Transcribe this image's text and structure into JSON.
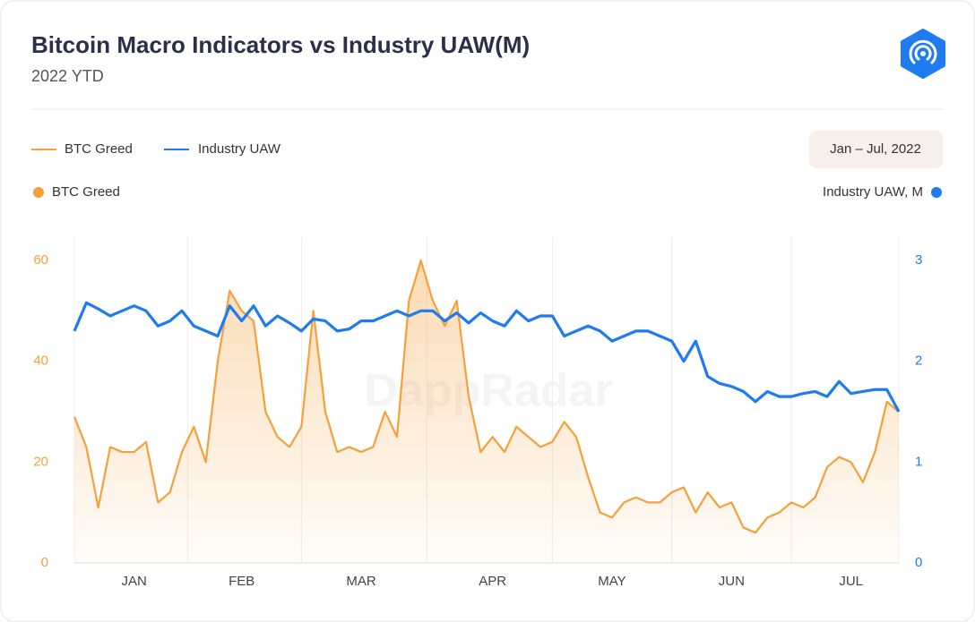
{
  "date_range": "Jan – Jul, 2022",
  "chart_data": {
    "type": "line",
    "title": "Bitcoin Macro Indicators vs Industry UAW(M)",
    "subtitle": "2022 YTD",
    "watermark": "DappRadar",
    "y_label": "BTC Greed",
    "y2_label": "Industry UAW, M",
    "categories": [
      null,
      null,
      null,
      null,
      null,
      "JAN",
      null,
      null,
      null,
      null,
      null,
      null,
      null,
      null,
      "FEB",
      null,
      null,
      null,
      null,
      null,
      null,
      null,
      null,
      null,
      "MAR",
      null,
      null,
      null,
      null,
      null,
      null,
      null,
      null,
      null,
      null,
      "APR",
      null,
      null,
      null,
      null,
      null,
      null,
      null,
      null,
      null,
      "MAY",
      null,
      null,
      null,
      null,
      null,
      null,
      null,
      null,
      null,
      "JUN",
      null,
      null,
      null,
      null,
      null,
      null,
      null,
      null,
      null,
      "JUL",
      null,
      null,
      null,
      null
    ],
    "series": [
      {
        "name": "BTC Greed",
        "color": "#f5a03b",
        "axis": "y",
        "values": [
          29,
          23,
          11,
          23,
          22,
          22,
          24,
          12,
          14,
          22,
          27,
          20,
          40,
          54,
          50,
          48,
          30,
          25,
          23,
          27,
          50,
          30,
          22,
          23,
          22,
          23,
          30,
          25,
          52,
          60,
          52,
          47,
          52,
          33,
          22,
          25,
          22,
          27,
          25,
          23,
          24,
          28,
          25,
          17,
          10,
          9,
          12,
          13,
          12,
          12,
          14,
          15,
          10,
          14,
          11,
          12,
          7,
          6,
          9,
          10,
          12,
          11,
          13,
          19,
          21,
          20,
          16,
          22,
          32,
          30
        ]
      },
      {
        "name": "Industry UAW",
        "color": "#1e7bf0",
        "axis": "y2",
        "values": [
          2.3,
          2.58,
          2.52,
          2.45,
          2.5,
          2.55,
          2.5,
          2.35,
          2.4,
          2.5,
          2.35,
          2.3,
          2.25,
          2.55,
          2.4,
          2.55,
          2.35,
          2.45,
          2.38,
          2.3,
          2.42,
          2.4,
          2.3,
          2.32,
          2.4,
          2.4,
          2.45,
          2.5,
          2.45,
          2.5,
          2.5,
          2.4,
          2.48,
          2.38,
          2.48,
          2.4,
          2.35,
          2.5,
          2.4,
          2.45,
          2.45,
          2.25,
          2.3,
          2.35,
          2.3,
          2.2,
          2.25,
          2.3,
          2.3,
          2.25,
          2.2,
          2.0,
          2.2,
          1.85,
          1.78,
          1.75,
          1.7,
          1.6,
          1.7,
          1.65,
          1.65,
          1.68,
          1.7,
          1.65,
          1.8,
          1.68,
          1.7,
          1.72,
          1.72,
          1.5
        ]
      }
    ],
    "ylim": [
      0,
      60
    ],
    "yticks": [
      0,
      20,
      40,
      60
    ],
    "y2lim": [
      0,
      3
    ],
    "y2ticks": [
      0,
      1,
      2,
      3
    ],
    "grid": true
  }
}
